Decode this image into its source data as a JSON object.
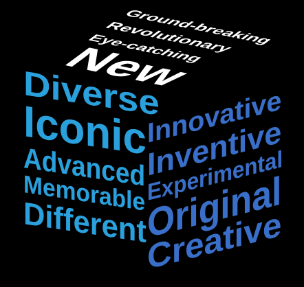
{
  "colors": {
    "background": "#000000",
    "top_face": "#ffffff",
    "left_face": "#2aa0dc",
    "right_face": "#3a6fc9"
  },
  "top_face": {
    "words": [
      "Ground-breaking",
      "Revolutionary",
      "Eye-catching",
      "New"
    ]
  },
  "left_face": {
    "words": [
      "Diverse",
      "Iconic",
      "Advanced",
      "Memorable",
      "Different"
    ]
  },
  "right_face": {
    "words": [
      "Innovative",
      "Inventive",
      "Experimental",
      "Original",
      "Creative"
    ]
  }
}
